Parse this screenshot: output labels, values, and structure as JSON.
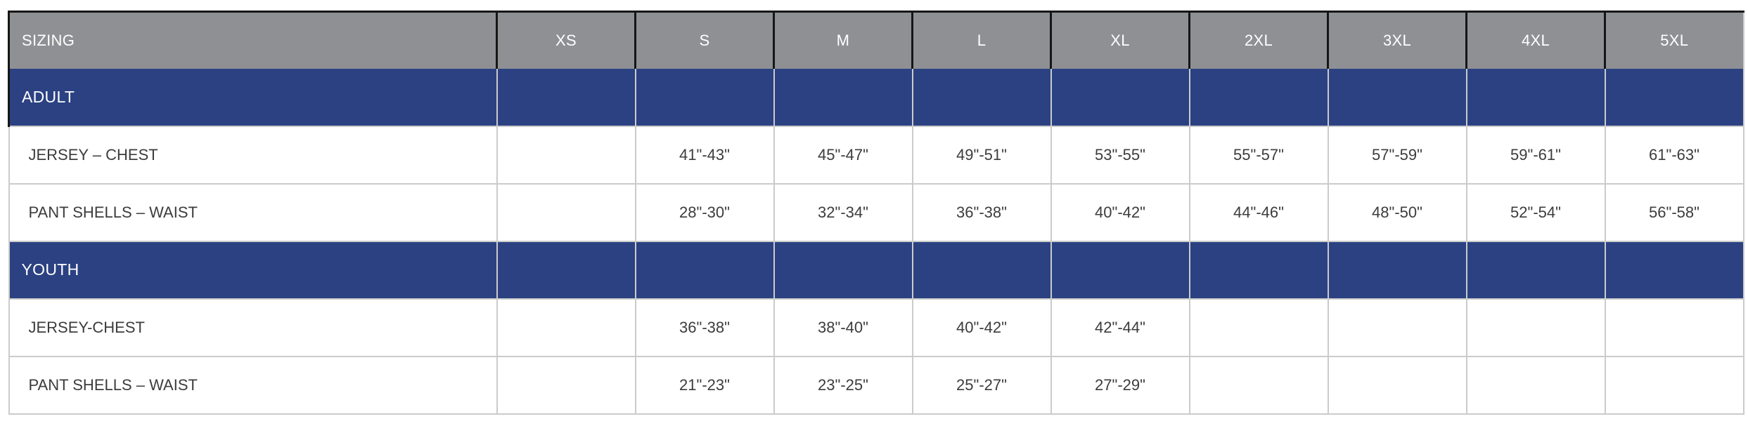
{
  "table": {
    "colors": {
      "header_bg": "#8f9094",
      "header_border": "#161616",
      "section_bg": "#2b4182",
      "grid_border": "#cbcbcb",
      "body_text": "#3c3c3c"
    },
    "header": {
      "columns": [
        "SIZING",
        "XS",
        "S",
        "M",
        "L",
        "XL",
        "2XL",
        "3XL",
        "4XL",
        "5XL"
      ]
    },
    "sections": [
      {
        "label": "ADULT",
        "rows": [
          {
            "label": "JERSEY – CHEST",
            "values": [
              "",
              "41\"-43\"",
              "45\"-47\"",
              "49\"-51\"",
              "53\"-55\"",
              "55\"-57\"",
              "57\"-59\"",
              "59\"-61\"",
              "61\"-63\""
            ]
          },
          {
            "label": "PANT SHELLS – WAIST",
            "values": [
              "",
              "28\"-30\"",
              "32\"-34\"",
              "36\"-38\"",
              "40\"-42\"",
              "44\"-46\"",
              "48\"-50\"",
              "52\"-54\"",
              "56\"-58\""
            ]
          }
        ]
      },
      {
        "label": "YOUTH",
        "rows": [
          {
            "label": "JERSEY-CHEST",
            "values": [
              "",
              "36\"-38\"",
              "38\"-40\"",
              "40\"-42\"",
              "42\"-44\"",
              "",
              "",
              "",
              ""
            ]
          },
          {
            "label": "PANT SHELLS – WAIST",
            "values": [
              "",
              "21\"-23\"",
              "23\"-25\"",
              "25\"-27\"",
              "27\"-29\"",
              "",
              "",
              "",
              ""
            ]
          }
        ]
      }
    ]
  }
}
